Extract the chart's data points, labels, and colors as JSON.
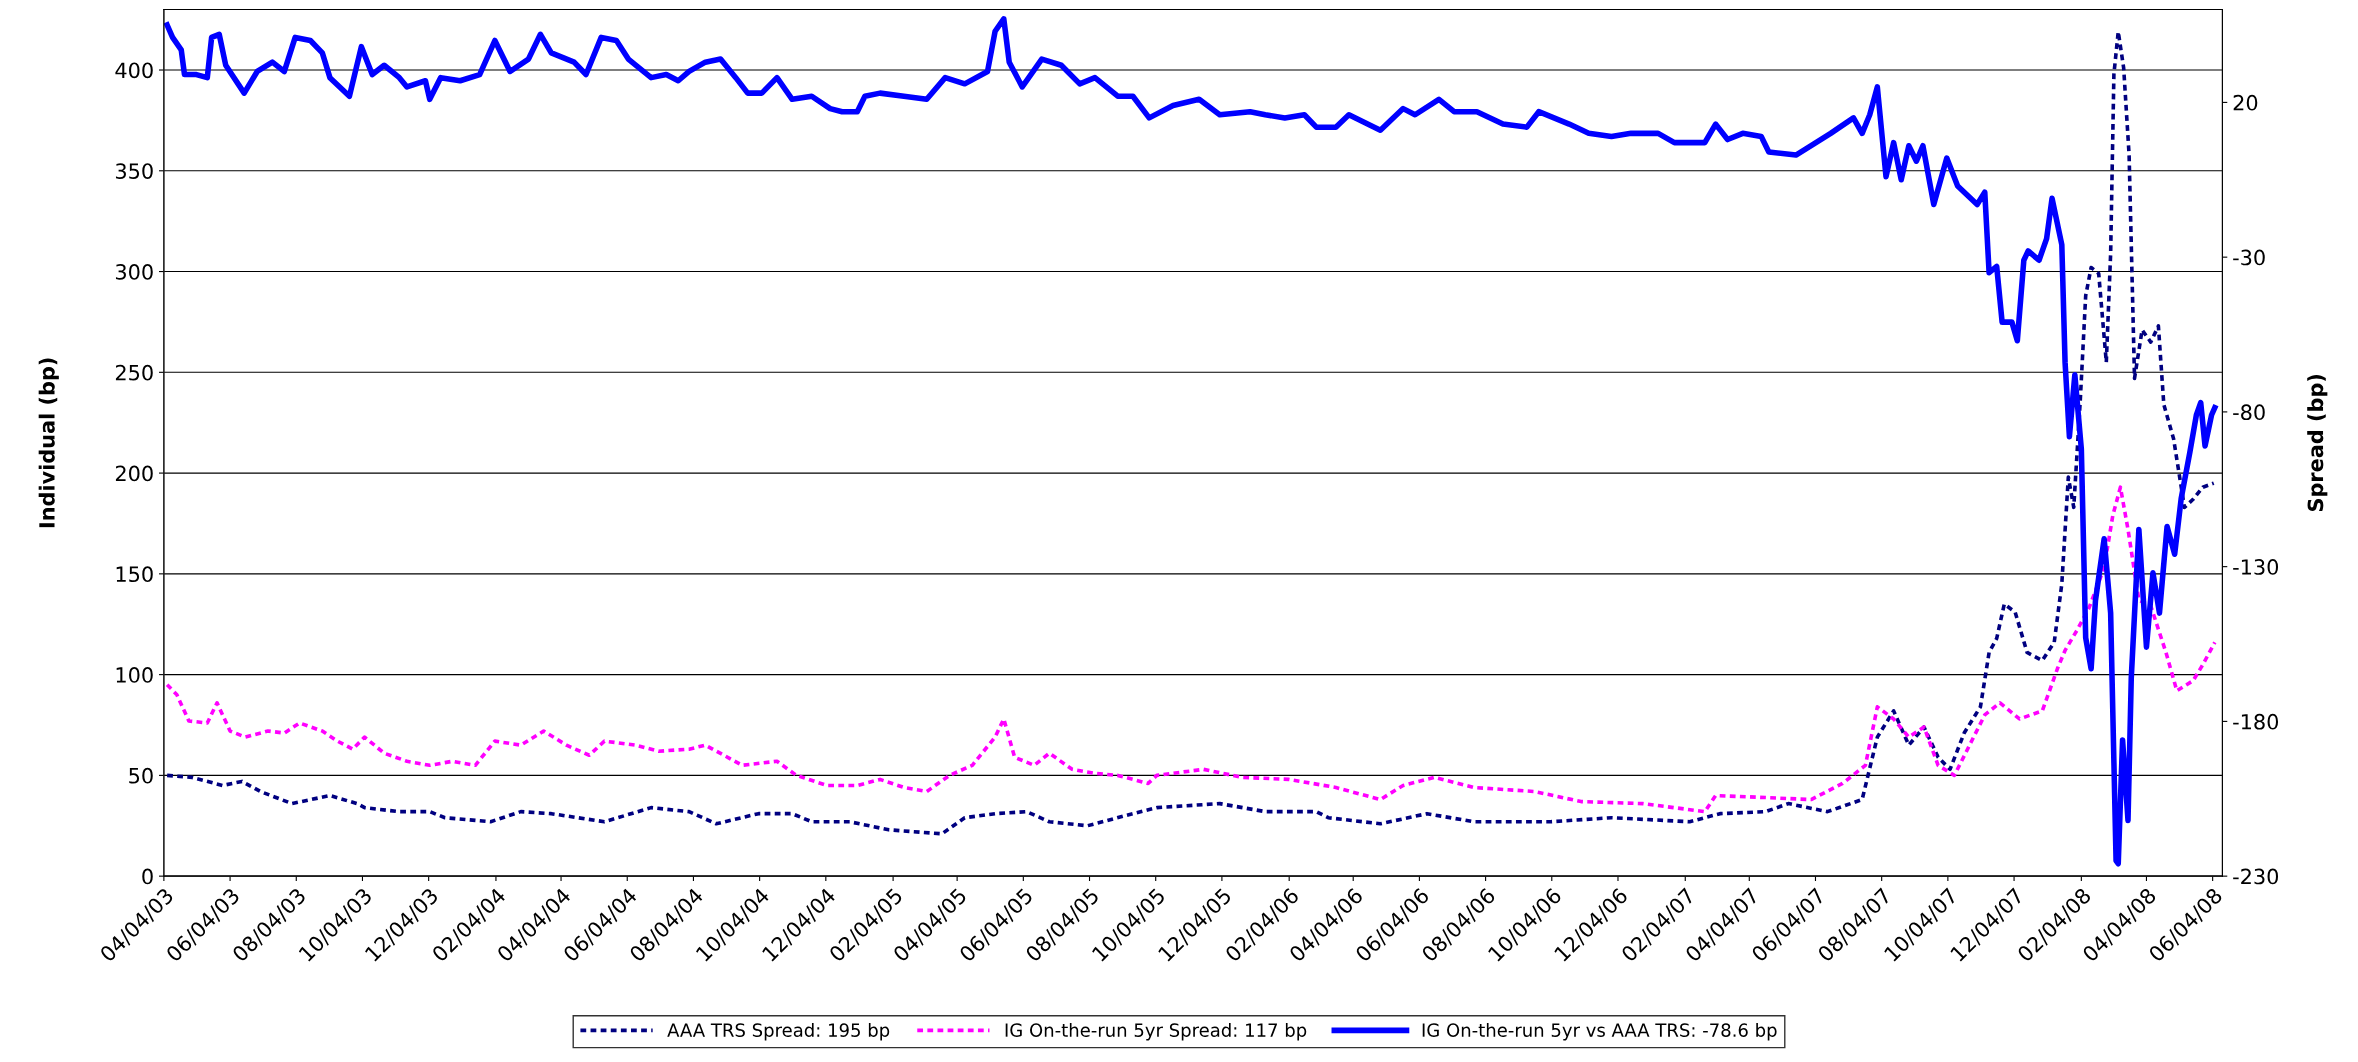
{
  "chart_data": {
    "type": "line",
    "ylabel": "Individual (bp)",
    "y2label": "Spread (bp)",
    "xlim": [
      "2003-04-04",
      "2008-06-13"
    ],
    "xticks": [
      {
        "value": "2003-04-04",
        "label": "04/04/03"
      },
      {
        "value": "2003-06-04",
        "label": "06/04/03"
      },
      {
        "value": "2003-08-04",
        "label": "08/04/03"
      },
      {
        "value": "2003-10-04",
        "label": "10/04/03"
      },
      {
        "value": "2003-12-04",
        "label": "12/04/03"
      },
      {
        "value": "2004-02-04",
        "label": "02/04/04"
      },
      {
        "value": "2004-04-04",
        "label": "04/04/04"
      },
      {
        "value": "2004-06-04",
        "label": "06/04/04"
      },
      {
        "value": "2004-08-04",
        "label": "08/04/04"
      },
      {
        "value": "2004-10-04",
        "label": "10/04/04"
      },
      {
        "value": "2004-12-04",
        "label": "12/04/04"
      },
      {
        "value": "2005-02-04",
        "label": "02/04/05"
      },
      {
        "value": "2005-04-04",
        "label": "04/04/05"
      },
      {
        "value": "2005-06-04",
        "label": "06/04/05"
      },
      {
        "value": "2005-08-04",
        "label": "08/04/05"
      },
      {
        "value": "2005-10-04",
        "label": "10/04/05"
      },
      {
        "value": "2005-12-04",
        "label": "12/04/05"
      },
      {
        "value": "2006-02-04",
        "label": "02/04/06"
      },
      {
        "value": "2006-04-04",
        "label": "04/04/06"
      },
      {
        "value": "2006-06-04",
        "label": "06/04/06"
      },
      {
        "value": "2006-08-04",
        "label": "08/04/06"
      },
      {
        "value": "2006-10-04",
        "label": "10/04/06"
      },
      {
        "value": "2006-12-04",
        "label": "12/04/06"
      },
      {
        "value": "2007-02-04",
        "label": "02/04/07"
      },
      {
        "value": "2007-04-04",
        "label": "04/04/07"
      },
      {
        "value": "2007-06-04",
        "label": "06/04/07"
      },
      {
        "value": "2007-08-04",
        "label": "08/04/07"
      },
      {
        "value": "2007-10-04",
        "label": "10/04/07"
      },
      {
        "value": "2007-12-04",
        "label": "12/04/07"
      },
      {
        "value": "2008-02-04",
        "label": "02/04/08"
      },
      {
        "value": "2008-04-04",
        "label": "04/04/08"
      },
      {
        "value": "2008-06-04",
        "label": "06/04/08"
      }
    ],
    "ylim": [
      0,
      430
    ],
    "yticks": [
      0,
      50,
      100,
      150,
      200,
      250,
      300,
      350,
      400
    ],
    "y2lim": [
      -230,
      50
    ],
    "y2ticks": [
      -230,
      -180,
      -130,
      -80,
      -30,
      20
    ],
    "grid": "y",
    "legend": "bottom",
    "series": [
      {
        "name": "AAA TRS Spread: 195 bp",
        "color": "#000080",
        "line_style": "dotted",
        "x": [
          "2003-04-07",
          "2003-04-30",
          "2003-05-28",
          "2003-06-15",
          "2003-07-02",
          "2003-07-31",
          "2003-09-04",
          "2003-09-29",
          "2003-10-06",
          "2003-11-07",
          "2003-12-05",
          "2003-12-19",
          "2004-01-30",
          "2004-02-27",
          "2004-03-26",
          "2004-05-14",
          "2004-06-26",
          "2004-07-31",
          "2004-08-25",
          "2004-10-03",
          "2004-11-03",
          "2004-11-21",
          "2004-12-26",
          "2005-01-31",
          "2005-03-21",
          "2005-04-11",
          "2005-05-09",
          "2005-06-07",
          "2005-06-28",
          "2005-08-02",
          "2005-09-06",
          "2005-10-05",
          "2005-12-02",
          "2006-01-13",
          "2006-03-01",
          "2006-03-12",
          "2006-04-29",
          "2006-06-11",
          "2006-07-24",
          "2006-10-03",
          "2006-11-28",
          "2007-02-08",
          "2007-03-08",
          "2007-04-19",
          "2007-05-10",
          "2007-06-15",
          "2007-07-17",
          "2007-07-31",
          "2007-08-15",
          "2007-08-29",
          "2007-09-12",
          "2007-09-25",
          "2007-10-06",
          "2007-10-19",
          "2007-11-03",
          "2007-11-11",
          "2007-11-18",
          "2007-11-25",
          "2007-12-05",
          "2007-12-16",
          "2007-12-30",
          "2008-01-10",
          "2008-01-17",
          "2008-01-23",
          "2008-01-28",
          "2008-02-03",
          "2008-02-08",
          "2008-02-13",
          "2008-02-20",
          "2008-02-27",
          "2008-03-02",
          "2008-03-05",
          "2008-03-09",
          "2008-03-14",
          "2008-03-19",
          "2008-03-24",
          "2008-03-31",
          "2008-04-08",
          "2008-04-15",
          "2008-04-20",
          "2008-04-29",
          "2008-05-09",
          "2008-05-17",
          "2008-05-26",
          "2008-06-05"
        ],
        "values": [
          50,
          49,
          45,
          47,
          42,
          36,
          40,
          36,
          34,
          32,
          32,
          29,
          27,
          32,
          31,
          27,
          34,
          32,
          26,
          31,
          31,
          27,
          27,
          23,
          21,
          29,
          31,
          32,
          27,
          25,
          30,
          34,
          36,
          32,
          32,
          29,
          26,
          31,
          27,
          27,
          29,
          27,
          31,
          32,
          36,
          32,
          38,
          69,
          82,
          65,
          74,
          59,
          53,
          71,
          84,
          111,
          118,
          135,
          131,
          111,
          107,
          116,
          145,
          198,
          183,
          236,
          288,
          302,
          299,
          255,
          309,
          398,
          419,
          401,
          358,
          247,
          271,
          265,
          273,
          234,
          217,
          183,
          187,
          193,
          195
        ]
      },
      {
        "name": "IG On-the-run 5yr Spread: 117 bp",
        "color": "#ff00ff",
        "line_style": "dotted",
        "x": [
          "2003-04-07",
          "2003-04-16",
          "2003-04-27",
          "2003-05-14",
          "2003-05-23",
          "2003-06-04",
          "2003-06-18",
          "2003-07-09",
          "2003-07-24",
          "2003-08-07",
          "2003-08-28",
          "2003-09-11",
          "2003-09-25",
          "2003-10-06",
          "2003-10-24",
          "2003-11-14",
          "2003-12-05",
          "2003-12-26",
          "2004-01-16",
          "2004-02-03",
          "2004-02-27",
          "2004-03-19",
          "2004-04-09",
          "2004-04-30",
          "2004-05-14",
          "2004-06-12",
          "2004-07-03",
          "2004-07-31",
          "2004-08-15",
          "2004-09-18",
          "2004-10-20",
          "2004-11-07",
          "2004-12-05",
          "2005-01-02",
          "2005-01-23",
          "2005-02-14",
          "2005-03-07",
          "2005-03-28",
          "2005-04-18",
          "2005-05-09",
          "2005-05-17",
          "2005-05-27",
          "2005-06-14",
          "2005-06-28",
          "2005-07-19",
          "2005-08-09",
          "2005-08-30",
          "2005-09-27",
          "2005-10-05",
          "2005-11-17",
          "2005-12-23",
          "2006-02-04",
          "2006-03-19",
          "2006-04-29",
          "2006-05-20",
          "2006-06-18",
          "2006-07-24",
          "2006-09-18",
          "2006-10-31",
          "2006-12-27",
          "2007-02-22",
          "2007-03-04",
          "2007-04-19",
          "2007-05-31",
          "2007-06-29",
          "2007-07-20",
          "2007-07-31",
          "2007-08-15",
          "2007-08-29",
          "2007-09-12",
          "2007-09-25",
          "2007-10-10",
          "2007-10-24",
          "2007-11-07",
          "2007-11-21",
          "2007-12-09",
          "2007-12-30",
          "2008-01-13",
          "2008-01-20",
          "2008-01-31",
          "2008-02-11",
          "2008-02-25",
          "2008-03-04",
          "2008-03-11",
          "2008-03-18",
          "2008-03-28",
          "2008-04-08",
          "2008-04-22",
          "2008-05-02",
          "2008-05-17",
          "2008-05-26",
          "2008-06-06"
        ],
        "values": [
          95,
          90,
          77,
          76,
          86,
          72,
          69,
          72,
          71,
          76,
          72,
          67,
          63,
          69,
          61,
          57,
          55,
          57,
          55,
          67,
          65,
          72,
          65,
          60,
          67,
          65,
          62,
          63,
          65,
          55,
          57,
          50,
          45,
          45,
          48,
          44,
          42,
          50,
          55,
          69,
          78,
          59,
          55,
          61,
          53,
          51,
          50,
          46,
          50,
          53,
          49,
          48,
          44,
          38,
          45,
          49,
          44,
          42,
          37,
          36,
          32,
          40,
          39,
          38,
          46,
          55,
          84,
          78,
          69,
          74,
          55,
          50,
          65,
          80,
          86,
          78,
          82,
          103,
          112,
          122,
          133,
          153,
          179,
          193,
          172,
          137,
          134,
          111,
          92,
          97,
          105,
          116
        ]
      },
      {
        "name": "IG On-the-run 5yr vs AAA TRS: -78.6 bp",
        "color": "#0000ff",
        "line_style": "solid",
        "axis": "y2",
        "x": [
          "2003-04-07",
          "2003-04-12",
          "2003-04-20",
          "2003-04-23",
          "2003-05-04",
          "2003-05-14",
          "2003-05-18",
          "2003-05-25",
          "2003-05-31",
          "2003-06-17",
          "2003-06-29",
          "2003-07-13",
          "2003-07-24",
          "2003-08-03",
          "2003-08-17",
          "2003-08-28",
          "2003-09-04",
          "2003-09-22",
          "2003-10-03",
          "2003-10-13",
          "2003-10-24",
          "2003-11-07",
          "2003-11-14",
          "2003-12-01",
          "2003-12-05",
          "2003-12-15",
          "2004-01-02",
          "2004-01-20",
          "2004-02-03",
          "2004-02-17",
          "2004-03-05",
          "2004-03-16",
          "2004-03-26",
          "2004-04-16",
          "2004-04-27",
          "2004-05-11",
          "2004-05-25",
          "2004-06-05",
          "2004-06-26",
          "2004-07-10",
          "2004-07-21",
          "2004-07-31",
          "2004-08-15",
          "2004-08-29",
          "2004-09-12",
          "2004-09-23",
          "2004-10-06",
          "2004-10-20",
          "2004-11-03",
          "2004-11-21",
          "2004-12-08",
          "2004-12-19",
          "2005-01-02",
          "2005-01-09",
          "2005-01-23",
          "2005-02-14",
          "2005-03-07",
          "2005-03-24",
          "2005-04-11",
          "2005-05-02",
          "2005-05-09",
          "2005-05-17",
          "2005-05-22",
          "2005-06-03",
          "2005-06-21",
          "2005-07-09",
          "2005-07-26",
          "2005-08-09",
          "2005-08-30",
          "2005-09-13",
          "2005-09-28",
          "2005-10-20",
          "2005-11-13",
          "2005-12-02",
          "2005-12-30",
          "2006-01-13",
          "2006-01-31",
          "2006-02-18",
          "2006-03-01",
          "2006-03-19",
          "2006-03-31",
          "2006-04-29",
          "2006-05-20",
          "2006-05-31",
          "2006-06-22",
          "2006-07-06",
          "2006-07-27",
          "2006-08-20",
          "2006-09-11",
          "2006-09-22",
          "2006-10-20",
          "2006-11-07",
          "2006-11-28",
          "2006-12-16",
          "2007-01-10",
          "2007-01-25",
          "2007-02-22",
          "2007-03-04",
          "2007-03-15",
          "2007-03-29",
          "2007-04-15",
          "2007-04-22",
          "2007-05-17",
          "2007-05-31",
          "2007-06-18",
          "2007-07-09",
          "2007-07-17",
          "2007-07-24",
          "2007-07-31",
          "2007-08-08",
          "2007-08-15",
          "2007-08-22",
          "2007-08-29",
          "2007-09-05",
          "2007-09-11",
          "2007-09-21",
          "2007-10-03",
          "2007-10-13",
          "2007-10-31",
          "2007-11-07",
          "2007-11-11",
          "2007-11-18",
          "2007-11-23",
          "2007-12-02",
          "2007-12-07",
          "2007-12-13",
          "2007-12-17",
          "2007-12-27",
          "2008-01-03",
          "2008-01-08",
          "2008-01-17",
          "2008-01-20",
          "2008-01-24",
          "2008-01-29",
          "2008-02-04",
          "2008-02-08",
          "2008-02-13",
          "2008-02-17",
          "2008-02-25",
          "2008-03-02",
          "2008-03-07",
          "2008-03-09",
          "2008-03-13",
          "2008-03-18",
          "2008-03-21",
          "2008-03-28",
          "2008-04-04",
          "2008-04-10",
          "2008-04-16",
          "2008-04-23",
          "2008-04-30",
          "2008-05-06",
          "2008-05-14",
          "2008-05-20",
          "2008-05-24",
          "2008-05-28",
          "2008-06-03",
          "2008-06-06"
        ],
        "values": [
          45,
          41,
          37,
          29,
          29,
          28,
          41,
          42,
          32,
          23,
          30,
          33,
          30,
          41,
          40,
          36,
          28,
          22,
          38,
          29,
          32,
          28,
          25,
          27,
          21,
          28,
          27,
          29,
          40,
          30,
          34,
          42,
          36,
          33,
          29,
          41,
          40,
          34,
          28,
          29,
          27,
          30,
          33,
          34,
          28,
          23,
          23,
          28,
          21,
          22,
          18,
          17,
          17,
          22,
          23,
          22,
          21,
          28,
          26,
          30,
          43,
          47,
          33,
          25,
          34,
          32,
          26,
          28,
          22,
          22,
          15,
          19,
          21,
          16,
          17,
          16,
          15,
          16,
          12,
          12,
          16,
          11,
          18,
          16,
          21,
          17,
          17,
          13,
          12,
          17,
          13,
          10,
          9,
          10,
          10,
          7,
          7,
          13,
          8,
          10,
          9,
          4,
          3,
          6,
          10,
          15,
          10,
          16,
          25,
          -4,
          7,
          -5,
          6,
          1,
          6,
          -13,
          2,
          -7,
          -13,
          -9,
          -35,
          -33,
          -51,
          -51,
          -57,
          -31,
          -28,
          -31,
          -24,
          -11,
          -26,
          -64,
          -88,
          -68,
          -92,
          -153,
          -163,
          -141,
          -121,
          -145,
          -225,
          -226,
          -186,
          -212,
          -166,
          -118,
          -156,
          -132,
          -145,
          -117,
          -126,
          -108,
          -93,
          -81,
          -77,
          -91,
          -81,
          -78.6
        ]
      }
    ]
  }
}
